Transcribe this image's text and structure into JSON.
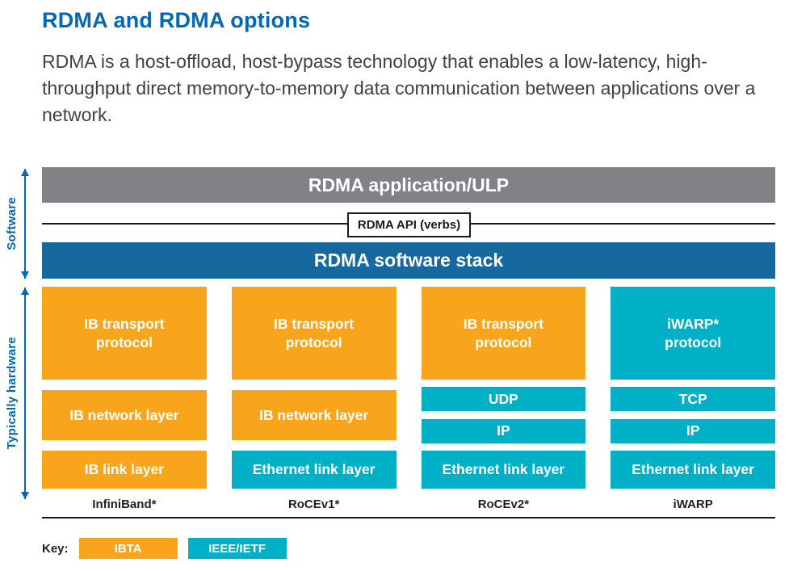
{
  "page": {
    "title": "RDMA and RDMA options",
    "description": "RDMA is a host-offload, host-bypass technology that enables a low-latency, high-throughput direct memory-to-memory data communication between applications over a network."
  },
  "colors": {
    "heading_blue": "#0068b5",
    "gray_bar": "#808285",
    "blue_bar": "#17689e",
    "ibta_orange": "#f9a51b",
    "ieee_teal": "#00b0c7",
    "body_text": "#414042"
  },
  "diagram": {
    "side_labels": {
      "software": "Software",
      "hardware": "Typically hardware"
    },
    "app_bar": "RDMA application/ULP",
    "api_label": "RDMA API (verbs)",
    "stack_bar": "RDMA software stack",
    "columns": [
      {
        "footer": "InfiniBand*",
        "boxes": [
          {
            "label": "IB transport\nprotocol",
            "variant": "ibta",
            "kind": "transport"
          },
          {
            "label": "IB network layer",
            "variant": "ibta",
            "kind": "network"
          },
          {
            "label": "IB link layer",
            "variant": "ibta",
            "kind": "link"
          }
        ]
      },
      {
        "footer": "RoCEv1*",
        "boxes": [
          {
            "label": "IB transport\nprotocol",
            "variant": "ibta",
            "kind": "transport"
          },
          {
            "label": "IB network layer",
            "variant": "ibta",
            "kind": "network"
          },
          {
            "label": "Ethernet link layer",
            "variant": "ieee",
            "kind": "link"
          }
        ]
      },
      {
        "footer": "RoCEv2*",
        "boxes": [
          {
            "label": "IB transport\nprotocol",
            "variant": "ibta",
            "kind": "transport"
          },
          {
            "label": "UDP",
            "variant": "ieee",
            "kind": "thin"
          },
          {
            "label": "IP",
            "variant": "ieee",
            "kind": "thin"
          },
          {
            "label": "Ethernet link layer",
            "variant": "ieee",
            "kind": "link"
          }
        ]
      },
      {
        "footer": "iWARP",
        "boxes": [
          {
            "label": "iWARP*\nprotocol",
            "variant": "ieee",
            "kind": "transport"
          },
          {
            "label": "TCP",
            "variant": "ieee",
            "kind": "thin"
          },
          {
            "label": "IP",
            "variant": "ieee",
            "kind": "thin"
          },
          {
            "label": "Ethernet link layer",
            "variant": "ieee",
            "kind": "link"
          }
        ]
      }
    ],
    "key": {
      "label": "Key:",
      "items": [
        {
          "label": "IBTA",
          "variant": "ibta"
        },
        {
          "label": "IEEE/IETF",
          "variant": "ieee"
        }
      ]
    }
  }
}
